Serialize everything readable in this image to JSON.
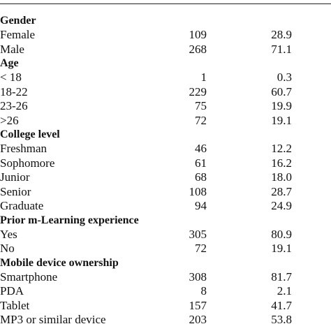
{
  "sections": [
    {
      "title": "Gender",
      "rows": [
        {
          "label": "Female",
          "n": "109",
          "pct": "28.9"
        },
        {
          "label": "Male",
          "n": "268",
          "pct": "71.1"
        }
      ]
    },
    {
      "title": "Age",
      "rows": [
        {
          "label": "< 18",
          "n": "1",
          "pct": "0.3"
        },
        {
          "label": "18-22",
          "n": "229",
          "pct": "60.7"
        },
        {
          "label": "23-26",
          "n": "75",
          "pct": "19.9"
        },
        {
          "label": ">26",
          "n": "72",
          "pct": "19.1"
        }
      ]
    },
    {
      "title": "College level",
      "rows": [
        {
          "label": "Freshman",
          "n": "46",
          "pct": "12.2"
        },
        {
          "label": "Sophomore",
          "n": "61",
          "pct": "16.2"
        },
        {
          "label": "Junior",
          "n": "68",
          "pct": "18.0"
        },
        {
          "label": "Senior",
          "n": "108",
          "pct": "28.7"
        },
        {
          "label": "Graduate",
          "n": "94",
          "pct": "24.9"
        }
      ]
    },
    {
      "title": "Prior m-Learning experience",
      "rows": [
        {
          "label": "Yes",
          "n": "305",
          "pct": "80.9"
        },
        {
          "label": "No",
          "n": "72",
          "pct": "19.1"
        }
      ]
    },
    {
      "title": "Mobile device ownership",
      "rows": [
        {
          "label": "Smartphone",
          "n": "308",
          "pct": "81.7"
        },
        {
          "label": "PDA",
          "n": "8",
          "pct": "2.1"
        },
        {
          "label": "Tablet",
          "n": "157",
          "pct": "41.7"
        },
        {
          "label": "MP3 or similar device",
          "n": "203",
          "pct": "53.8"
        }
      ]
    }
  ]
}
